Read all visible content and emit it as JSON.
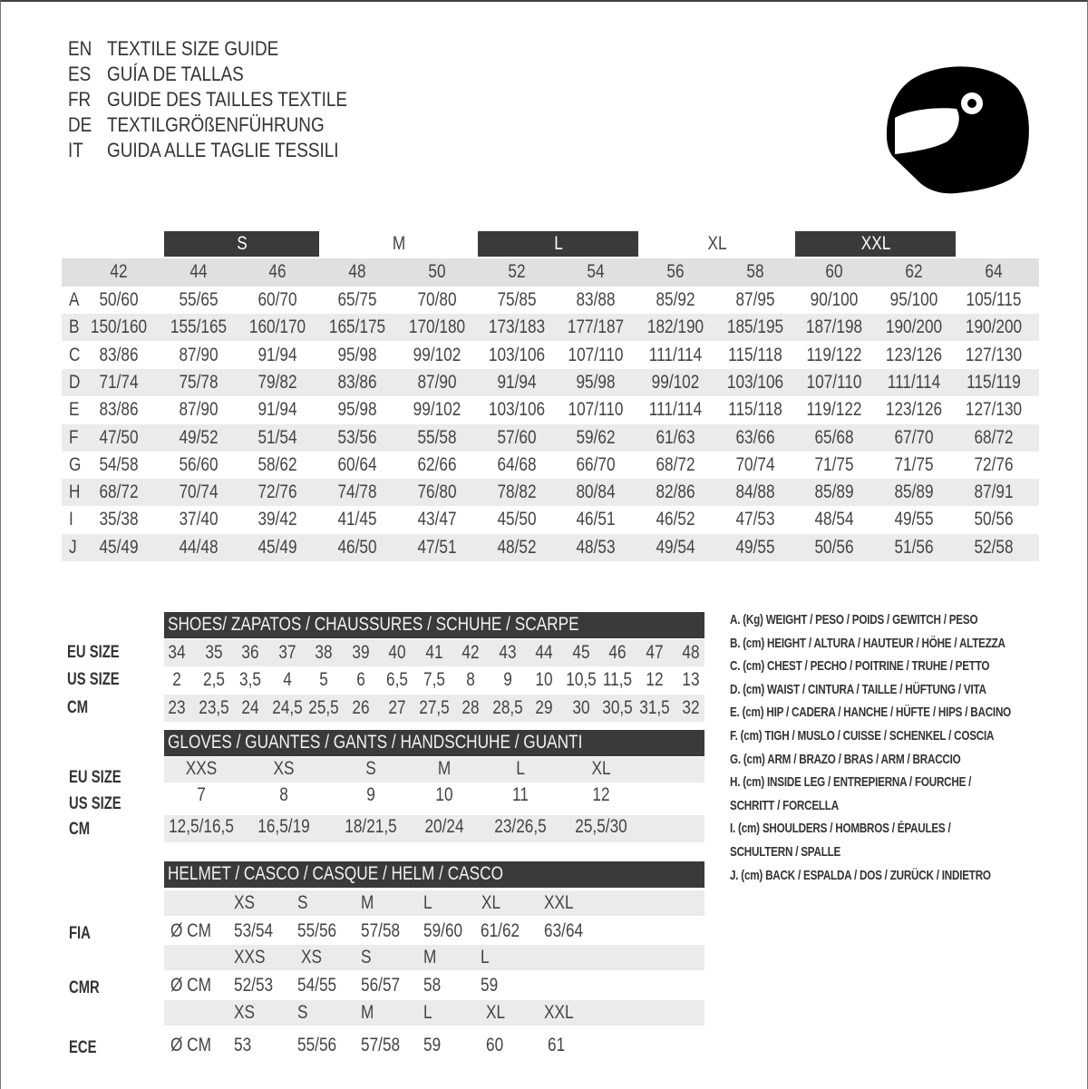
{
  "titles": [
    {
      "code": "EN",
      "text": "TEXTILE SIZE GUIDE"
    },
    {
      "code": "ES",
      "text": "GUÍA DE TALLAS"
    },
    {
      "code": "FR",
      "text": "GUIDE DES TAILLES TEXTILE"
    },
    {
      "code": "DE",
      "text": "TEXTILGRÖßENFÜHRUNG"
    },
    {
      "code": "IT",
      "text": "GUIDA ALLE TAGLIE TESSILI"
    }
  ],
  "icon": "helmet-icon",
  "colors": {
    "dark_band": "#3a3a3a",
    "light_band": "#ebebeb",
    "header_band": "#e0e0e0"
  },
  "textile": {
    "size_groups": [
      "S",
      "M",
      "L",
      "XL",
      "XXL"
    ],
    "sizes": [
      "42",
      "44",
      "46",
      "48",
      "50",
      "52",
      "54",
      "56",
      "58",
      "60",
      "62",
      "64"
    ],
    "rows": [
      {
        "label": "A",
        "values": [
          "50/60",
          "55/65",
          "60/70",
          "65/75",
          "70/80",
          "75/85",
          "83/88",
          "85/92",
          "87/95",
          "90/100",
          "95/100",
          "105/115"
        ]
      },
      {
        "label": "B",
        "values": [
          "150/160",
          "155/165",
          "160/170",
          "165/175",
          "170/180",
          "173/183",
          "177/187",
          "182/190",
          "185/195",
          "187/198",
          "190/200",
          "190/200"
        ]
      },
      {
        "label": "C",
        "values": [
          "83/86",
          "87/90",
          "91/94",
          "95/98",
          "99/102",
          "103/106",
          "107/110",
          "111/114",
          "115/118",
          "119/122",
          "123/126",
          "127/130"
        ]
      },
      {
        "label": "D",
        "values": [
          "71/74",
          "75/78",
          "79/82",
          "83/86",
          "87/90",
          "91/94",
          "95/98",
          "99/102",
          "103/106",
          "107/110",
          "111/114",
          "115/119"
        ]
      },
      {
        "label": "E",
        "values": [
          "83/86",
          "87/90",
          "91/94",
          "95/98",
          "99/102",
          "103/106",
          "107/110",
          "111/114",
          "115/118",
          "119/122",
          "123/126",
          "127/130"
        ]
      },
      {
        "label": "F",
        "values": [
          "47/50",
          "49/52",
          "51/54",
          "53/56",
          "55/58",
          "57/60",
          "59/62",
          "61/63",
          "63/66",
          "65/68",
          "67/70",
          "68/72"
        ]
      },
      {
        "label": "G",
        "values": [
          "54/58",
          "56/60",
          "58/62",
          "60/64",
          "62/66",
          "64/68",
          "66/70",
          "68/72",
          "70/74",
          "71/75",
          "71/75",
          "72/76"
        ]
      },
      {
        "label": "H",
        "values": [
          "68/72",
          "70/74",
          "72/76",
          "74/78",
          "76/80",
          "78/82",
          "80/84",
          "82/86",
          "84/88",
          "85/89",
          "85/89",
          "87/91"
        ]
      },
      {
        "label": "I",
        "values": [
          "35/38",
          "37/40",
          "39/42",
          "41/45",
          "43/47",
          "45/50",
          "46/51",
          "46/52",
          "47/53",
          "48/54",
          "49/55",
          "50/56"
        ]
      },
      {
        "label": "J",
        "values": [
          "45/49",
          "44/48",
          "45/49",
          "46/50",
          "47/51",
          "48/52",
          "48/53",
          "49/54",
          "49/55",
          "50/56",
          "51/56",
          "52/58"
        ]
      }
    ]
  },
  "shoes": {
    "title": "SHOES/ ZAPATOS / CHAUSSURES / SCHUHE / SCARPE",
    "rows": [
      {
        "label": "EU SIZE",
        "values": [
          "34",
          "35",
          "36",
          "37",
          "38",
          "39",
          "40",
          "41",
          "42",
          "43",
          "44",
          "45",
          "46",
          "47",
          "48"
        ]
      },
      {
        "label": "US SIZE",
        "values": [
          "2",
          "2,5",
          "3,5",
          "4",
          "5",
          "6",
          "6,5",
          "7,5",
          "8",
          "9",
          "10",
          "10,5",
          "11,5",
          "12",
          "13"
        ]
      },
      {
        "label": "CM",
        "values": [
          "23",
          "23,5",
          "24",
          "24,5",
          "25,5",
          "26",
          "27",
          "27,5",
          "28",
          "28,5",
          "29",
          "30",
          "30,5",
          "31,5",
          "32"
        ]
      }
    ]
  },
  "gloves": {
    "title": "GLOVES / GUANTES / GANTS / HANDSCHUHE / GUANTI",
    "rows": [
      {
        "label": "EU SIZE",
        "values": [
          "XXS",
          "XS",
          "S",
          "M",
          "L",
          "XL"
        ]
      },
      {
        "label": "US SIZE",
        "values": [
          "7",
          "8",
          "9",
          "10",
          "11",
          "12"
        ]
      },
      {
        "label": "CM",
        "values": [
          "12,5/16,5",
          "16,5/19",
          "18/21,5",
          "20/24",
          "23/26,5",
          "25,5/30"
        ]
      }
    ]
  },
  "helmet": {
    "title": "HELMET / CASCO / CASQUE / HELM / CASCO",
    "unit": "Ø CM",
    "standards": [
      {
        "label": "FIA",
        "sizes": [
          "XS",
          "S",
          "M",
          "L",
          "XL",
          "XXL"
        ],
        "values": [
          "53/54",
          "55/56",
          "57/58",
          "59/60",
          "61/62",
          "63/64"
        ]
      },
      {
        "label": "CMR",
        "sizes": [
          "XXS",
          "XS",
          "S",
          "M",
          "L"
        ],
        "values": [
          "52/53",
          "54/55",
          "56/57",
          "58",
          "59"
        ]
      },
      {
        "label": "ECE",
        "sizes": [
          "XS",
          "S",
          "M",
          "L",
          "XL",
          "XXL"
        ],
        "values": [
          "53",
          "55/56",
          "57/58",
          "59",
          "60",
          "61"
        ]
      }
    ]
  },
  "legend": [
    "A. (Kg) WEIGHT / PESO / POIDS / GEWITCH / PESO",
    "B. (cm) HEIGHT / ALTURA / HAUTEUR / HÖHE / ALTEZZA",
    "C. (cm) CHEST / PECHO / POITRINE / TRUHE / PETTO",
    "D. (cm) WAIST / CINTURA / TAILLE / HÜFTUNG / VITA",
    "E. (cm) HIP / CADERA / HANCHE / HÜFTE / HIPS /  BACINO",
    "F.  (cm) TIGH / MUSLO / CUISSE / SCHENKEL / COSCIA",
    "G. (cm) ARM  / BRAZO / BRAS / ARM / BRACCIO",
    "H. (cm) INSIDE LEG / ENTREPIERNA / FOURCHE /",
    "SCHRITT / FORCELLA",
    "I.  (cm) SHOULDERS / HOMBROS / ÉPAULES /",
    "SCHULTERN / SPALLE",
    "J. (cm) BACK / ESPALDA / DOS / ZURÜCK / INDIETRO"
  ]
}
